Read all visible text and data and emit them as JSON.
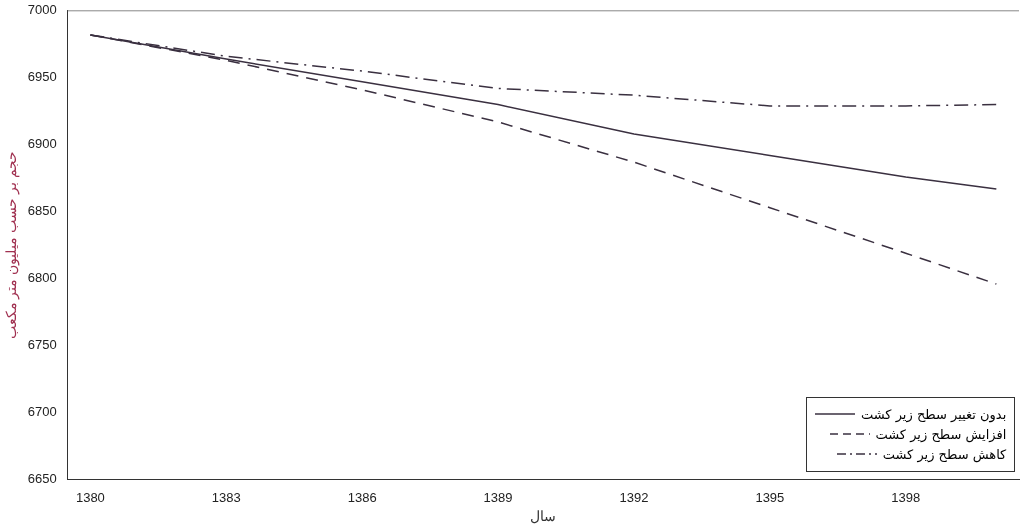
{
  "chart_data": {
    "type": "line",
    "xlabel": "سال",
    "ylabel": "حجم بر حسب میلیون متر مکعب",
    "x": [
      1380,
      1383,
      1386,
      1389,
      1392,
      1395,
      1398,
      1400
    ],
    "xlim": [
      1379.5,
      1400.5
    ],
    "xticks": [
      1380,
      1383,
      1386,
      1389,
      1392,
      1395,
      1398
    ],
    "ylim": [
      6650,
      7000
    ],
    "yticks": [
      6650,
      6700,
      6750,
      6800,
      6850,
      6900,
      6950,
      7000
    ],
    "grid": false,
    "legend": "bottom right",
    "marker": "none",
    "series": [
      {
        "name": "بدون تغییر سطح زیر کشت",
        "color": "#3a3040",
        "line_style": "solid",
        "values": [
          6982,
          6964,
          6947,
          6930,
          6908,
          6892,
          6876,
          6867
        ]
      },
      {
        "name": "افزایش سطح زیر کشت",
        "color": "#3a3040",
        "line_style": "dashed",
        "values": [
          6982,
          6963,
          6941,
          6917,
          6887,
          6853,
          6819,
          6796
        ]
      },
      {
        "name": "کاهش سطح زیر کشت",
        "color": "#3a3040",
        "line_style": "dashdot",
        "values": [
          6982,
          6966,
          6955,
          6942,
          6937,
          6929,
          6929,
          6930
        ]
      }
    ]
  }
}
